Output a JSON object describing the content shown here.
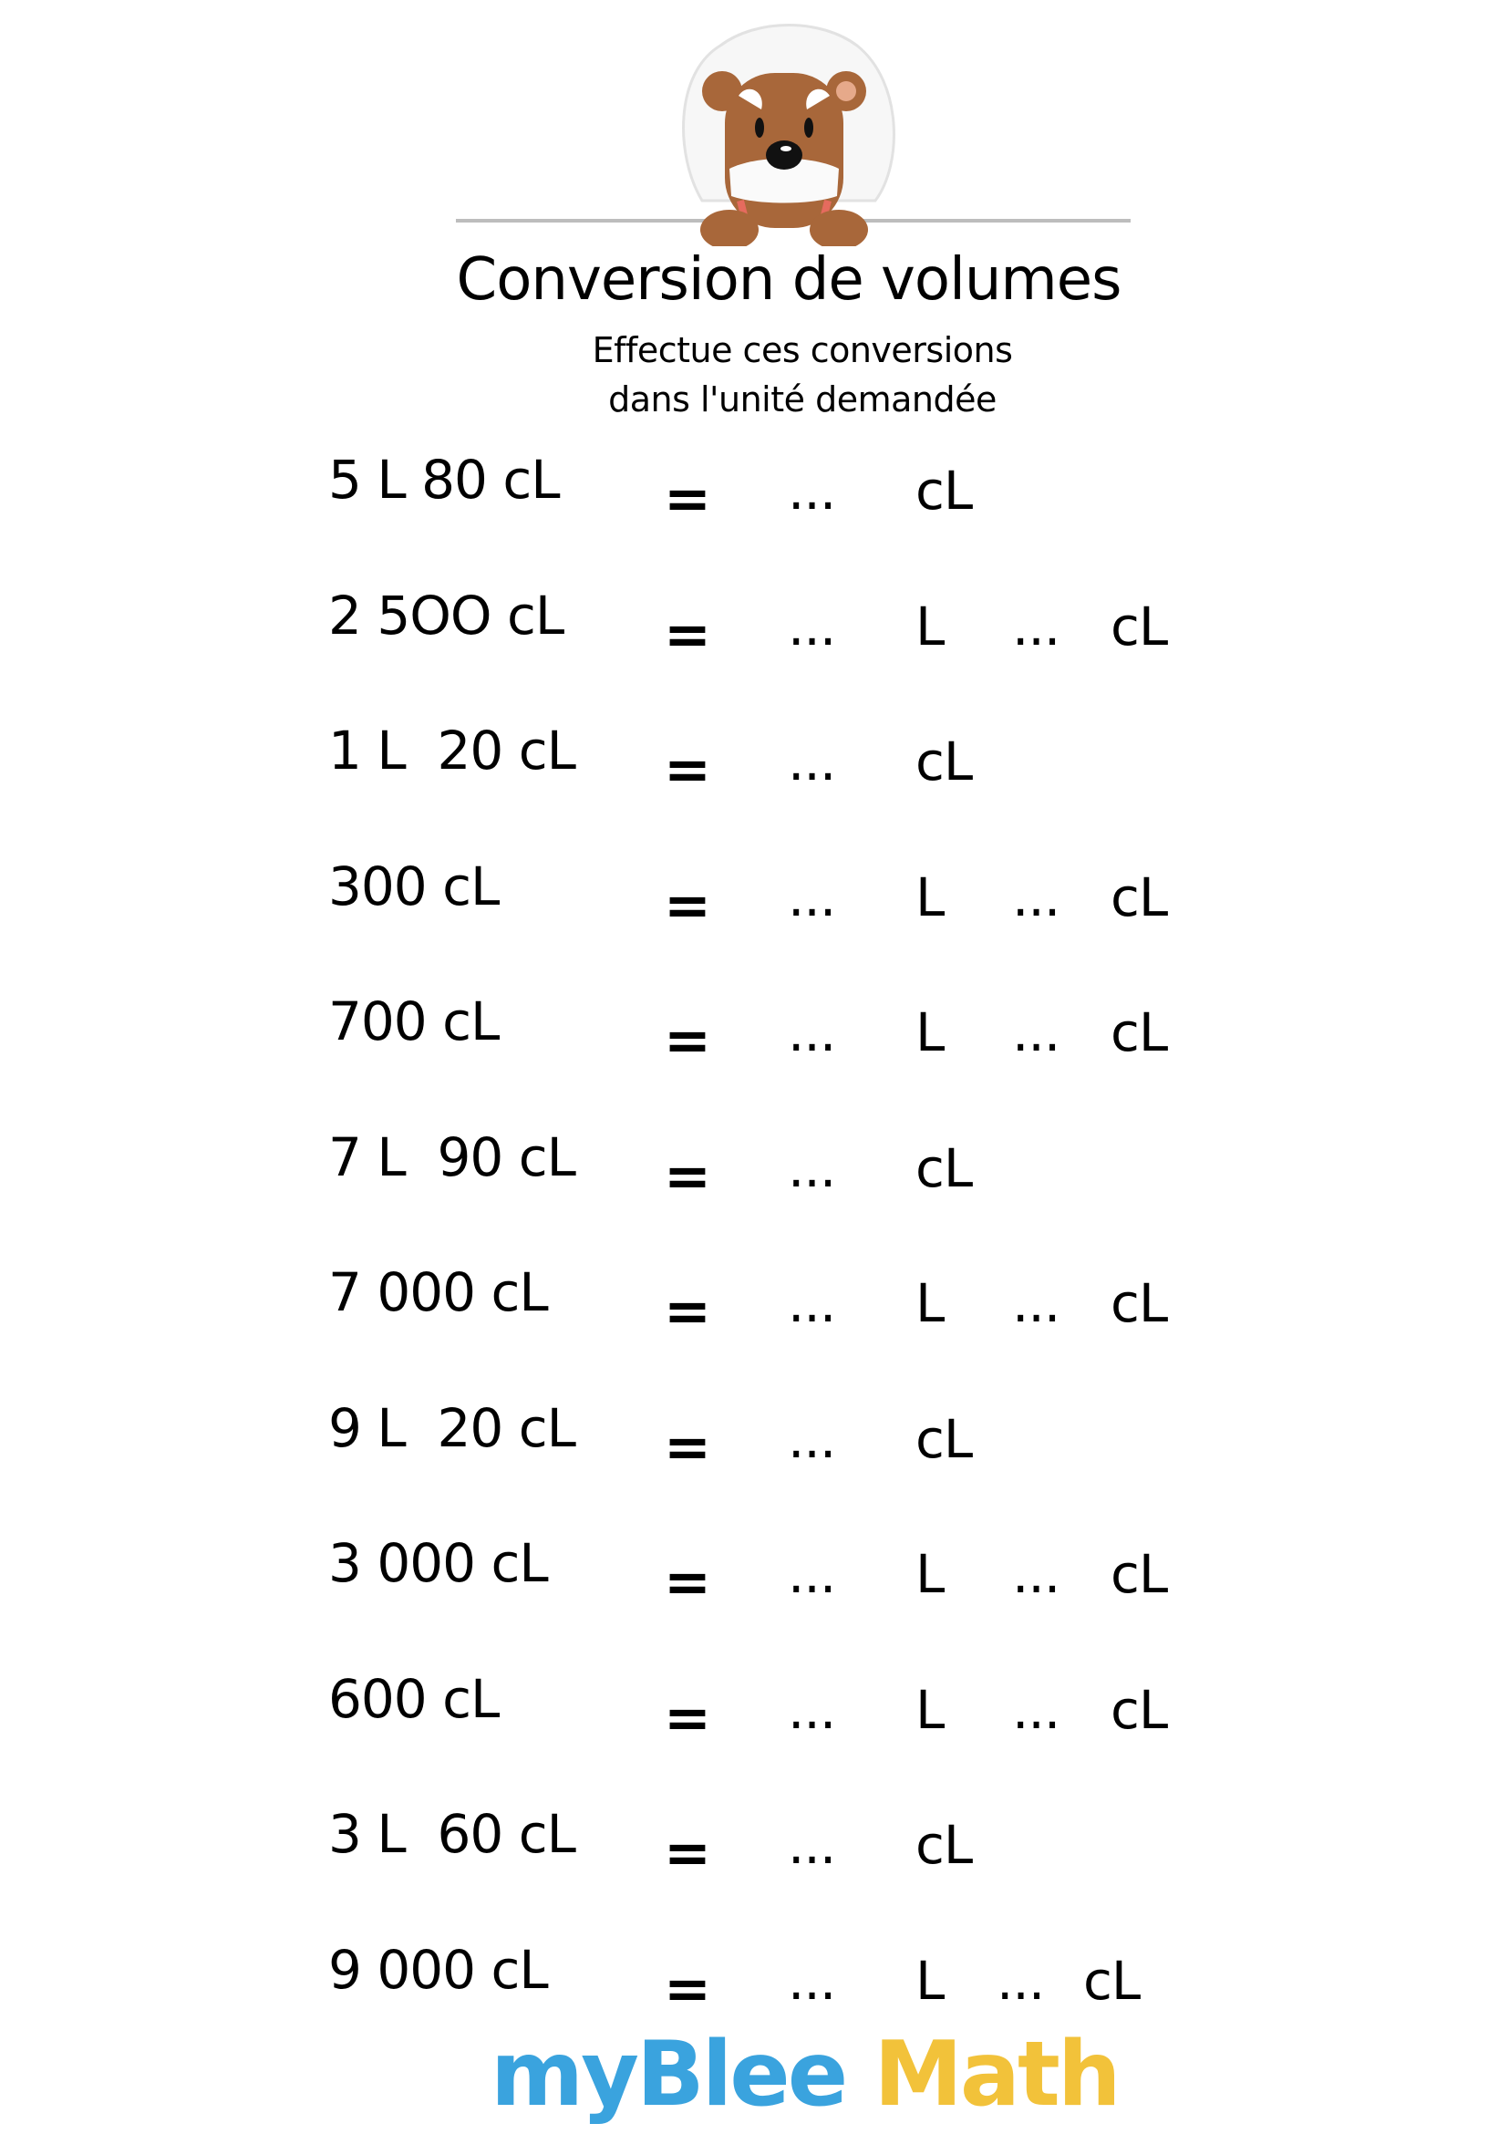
{
  "header": {
    "title": "Conversion de volumes",
    "subtitle_line1": "Effectue ces conversions",
    "subtitle_line2": "dans l'unité demandée"
  },
  "mascot": {
    "icon": "bear-mascot-icon"
  },
  "exercises": [
    {
      "quantity": "5 L 80 cL",
      "equals": "=",
      "blank1": "...",
      "unit1": "cL"
    },
    {
      "quantity": "2 5OO cL",
      "equals": "=",
      "blank1": "...",
      "unit1": "L",
      "blank2": "...",
      "unit2": "cL"
    },
    {
      "quantity": "1 L  20 cL",
      "equals": "=",
      "blank1": "...",
      "unit1": "cL"
    },
    {
      "quantity": "300 cL",
      "equals": "=",
      "blank1": "...",
      "unit1": "L",
      "blank2": "...",
      "unit2": "cL"
    },
    {
      "quantity": "700 cL",
      "equals": "=",
      "blank1": "...",
      "unit1": "L",
      "blank2": "...",
      "unit2": "cL"
    },
    {
      "quantity": "7 L  90 cL",
      "equals": "=",
      "blank1": "...",
      "unit1": "cL"
    },
    {
      "quantity": "7 000 cL",
      "equals": "=",
      "blank1": "...",
      "unit1": "L",
      "blank2": "...",
      "unit2": "cL"
    },
    {
      "quantity": "9 L  20 cL",
      "equals": "=",
      "blank1": "...",
      "unit1": "cL"
    },
    {
      "quantity": "3 000 cL",
      "equals": "=",
      "blank1": "...",
      "unit1": "L",
      "blank2": "...",
      "unit2": "cL"
    },
    {
      "quantity": "600 cL",
      "equals": "=",
      "blank1": "...",
      "unit1": "L",
      "blank2": "...",
      "unit2": "cL"
    },
    {
      "quantity": "3 L  60 cL",
      "equals": "=",
      "blank1": "...",
      "unit1": "cL"
    },
    {
      "quantity": "9 000 cL",
      "equals": "=",
      "blank1": "...",
      "unit1": "L",
      "blank2": "...",
      "unit2": "cL"
    }
  ],
  "footer": {
    "logo_part1": "myBlee",
    "logo_part2": "Math",
    "colors": {
      "blue": "#3aa3de",
      "yellow": "#f2c23a"
    }
  }
}
